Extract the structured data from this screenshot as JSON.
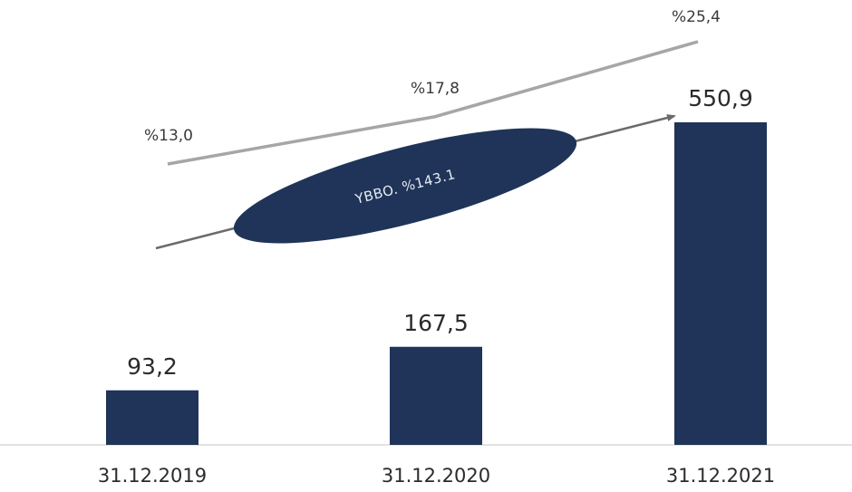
{
  "chart_data": {
    "type": "bar",
    "categories": [
      "31.12.2019",
      "31.12.2020",
      "31.12.2021"
    ],
    "values": [
      93.2,
      167.5,
      550.9
    ],
    "value_labels": [
      "93,2",
      "167,5",
      "550,9"
    ],
    "ylim": [
      0,
      600
    ],
    "bar_color": "#1f3458",
    "ratio_line": {
      "values": [
        13.0,
        17.8,
        25.4
      ],
      "labels": [
        "%13,0",
        "%17,8",
        "%25,4"
      ],
      "color": "#a6a6a6"
    },
    "cagr_annotation": {
      "text": "YBBO. %143.1",
      "arrow_color": "#6b6b6b",
      "ellipse_color": "#1f3458"
    },
    "title": "",
    "xlabel": "",
    "ylabel": "",
    "grid": false,
    "legend": "none"
  }
}
